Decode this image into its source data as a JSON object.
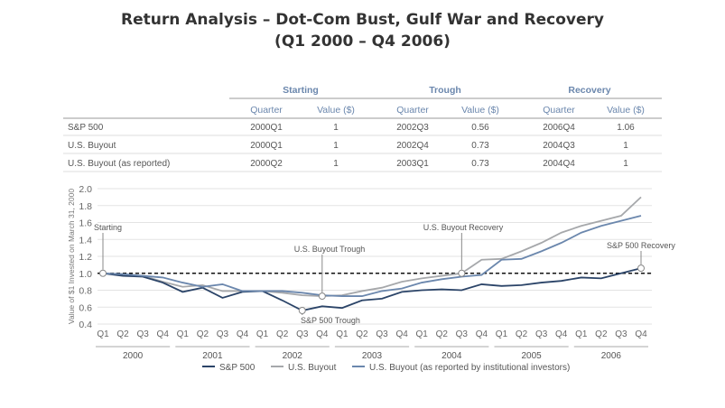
{
  "title_line1": "Return Analysis – Dot-Com Bust, Gulf War and Recovery",
  "title_line2": "(Q1 2000 – Q4 2006)",
  "table": {
    "groups": [
      "Starting",
      "Trough",
      "Recovery"
    ],
    "subheaders": [
      "Quarter",
      "Value ($)",
      "Quarter",
      "Value ($)",
      "Quarter",
      "Value ($)"
    ],
    "rows": [
      {
        "name": "S&P 500",
        "cells": [
          "2000Q1",
          "1",
          "2002Q3",
          "0.56",
          "2006Q4",
          "1.06"
        ]
      },
      {
        "name": "U.S. Buyout",
        "cells": [
          "2000Q1",
          "1",
          "2002Q4",
          "0.73",
          "2004Q3",
          "1"
        ]
      },
      {
        "name": "U.S. Buyout (as reported)",
        "cells": [
          "2000Q2",
          "1",
          "2003Q1",
          "0.73",
          "2004Q4",
          "1"
        ]
      }
    ]
  },
  "chart_data": {
    "type": "line",
    "ylabel": "Value of $1 Invested on March 31, 2000",
    "ylim": [
      0.4,
      2.0
    ],
    "yticks": [
      "0.4",
      "0.6",
      "0.8",
      "1.0",
      "1.2",
      "1.4",
      "1.6",
      "1.8",
      "2.0"
    ],
    "quarters": [
      "Q1",
      "Q2",
      "Q3",
      "Q4"
    ],
    "years": [
      "2000",
      "2001",
      "2002",
      "2003",
      "2004",
      "2005",
      "2006"
    ],
    "reference_line": 1.0,
    "grid": true,
    "legend_placement": "bottom",
    "series": [
      {
        "name": "S&P 500",
        "color": "#2b4468",
        "values": [
          1,
          0.97,
          0.96,
          0.89,
          0.78,
          0.83,
          0.71,
          0.78,
          0.79,
          0.68,
          0.56,
          0.61,
          0.59,
          0.68,
          0.7,
          0.78,
          0.8,
          0.81,
          0.8,
          0.87,
          0.85,
          0.86,
          0.89,
          0.91,
          0.95,
          0.94,
          1.0,
          1.06
        ]
      },
      {
        "name": "U.S. Buyout",
        "color": "#a6a8ab",
        "values": [
          1,
          0.98,
          0.97,
          0.9,
          0.84,
          0.86,
          0.79,
          0.79,
          0.79,
          0.77,
          0.74,
          0.73,
          0.74,
          0.79,
          0.83,
          0.9,
          0.94,
          0.97,
          1.0,
          1.16,
          1.17,
          1.26,
          1.36,
          1.48,
          1.56,
          1.62,
          1.68,
          1.9
        ]
      },
      {
        "name": "U.S. Buyout (as reported by institutional investors)",
        "color": "#6b87ad",
        "values": [
          1,
          0.99,
          0.97,
          0.95,
          0.89,
          0.84,
          0.87,
          0.79,
          0.79,
          0.79,
          0.77,
          0.74,
          0.73,
          0.73,
          0.79,
          0.82,
          0.89,
          0.93,
          0.96,
          0.98,
          1.16,
          1.17,
          1.26,
          1.36,
          1.48,
          1.56,
          1.62,
          1.68
        ]
      }
    ],
    "annotations": [
      {
        "label": "Starting",
        "index": 0,
        "value": 1.0
      },
      {
        "label": "U.S. Buyout Trough",
        "index": 11,
        "value": 0.73
      },
      {
        "label": "S&P 500 Trough",
        "index": 10,
        "value": 0.56
      },
      {
        "label": "U.S. Buyout Recovery",
        "index": 18,
        "value": 1.0
      },
      {
        "label": "S&P 500 Recovery",
        "index": 27,
        "value": 1.06
      }
    ]
  }
}
